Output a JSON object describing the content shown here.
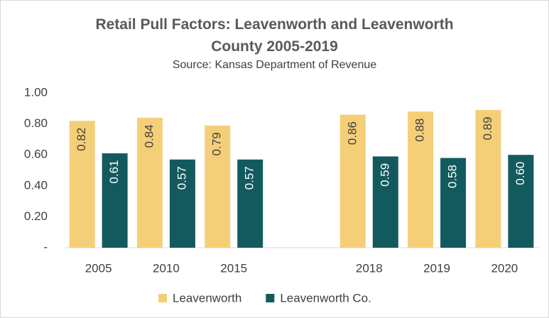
{
  "chart_data": {
    "type": "bar",
    "title": "Retail Pull Factors:  Leavenworth and Leavenworth County 2005-2019",
    "subtitle": "Source:  Kansas Department of Revenue",
    "categories": [
      "2005",
      "2010",
      "2015",
      null,
      "2018",
      "2019",
      "2020"
    ],
    "series": [
      {
        "name": "Leavenworth",
        "color": "#f5cf78",
        "values": [
          0.82,
          0.84,
          0.79,
          null,
          0.86,
          0.88,
          0.89
        ],
        "value_labels": [
          "0.82",
          "0.84",
          "0.79",
          null,
          "0.86",
          "0.88",
          "0.89"
        ]
      },
      {
        "name": "Leavenworth Co.",
        "color": "#135a5e",
        "values": [
          0.61,
          0.57,
          0.57,
          null,
          0.59,
          0.58,
          0.6
        ],
        "value_labels": [
          "0.61",
          "0.57",
          "0.57",
          null,
          "0.59",
          "0.58",
          "0.60"
        ]
      }
    ],
    "ylim": [
      0,
      1
    ],
    "yticks": [
      {
        "value": 0,
        "label": "-"
      },
      {
        "value": 0.2,
        "label": "0.20"
      },
      {
        "value": 0.4,
        "label": "0.40"
      },
      {
        "value": 0.6,
        "label": "0.60"
      },
      {
        "value": 0.8,
        "label": "0.80"
      },
      {
        "value": 1,
        "label": "1.00"
      }
    ],
    "legend": "bottom"
  }
}
